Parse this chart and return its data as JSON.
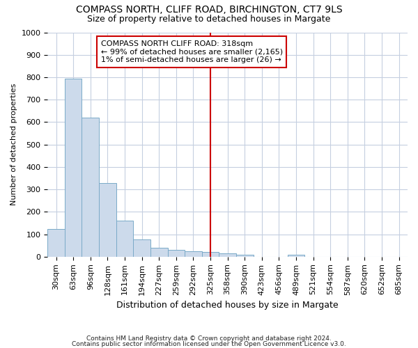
{
  "title1": "COMPASS NORTH, CLIFF ROAD, BIRCHINGTON, CT7 9LS",
  "title2": "Size of property relative to detached houses in Margate",
  "xlabel": "Distribution of detached houses by size in Margate",
  "ylabel": "Number of detached properties",
  "footnote1": "Contains HM Land Registry data © Crown copyright and database right 2024.",
  "footnote2": "Contains public sector information licensed under the Open Government Licence v3.0.",
  "annotation_line1": "COMPASS NORTH CLIFF ROAD: 318sqm",
  "annotation_line2": "← 99% of detached houses are smaller (2,165)",
  "annotation_line3": "1% of semi-detached houses are larger (26) →",
  "bar_color": "#ccdaeb",
  "bar_edge_color": "#7aaac8",
  "vline_color": "#cc0000",
  "annotation_box_edge_color": "#cc0000",
  "background_color": "#ffffff",
  "grid_color": "#c5cfe0",
  "categories": [
    "30sqm",
    "63sqm",
    "96sqm",
    "128sqm",
    "161sqm",
    "194sqm",
    "227sqm",
    "259sqm",
    "292sqm",
    "325sqm",
    "358sqm",
    "390sqm",
    "423sqm",
    "456sqm",
    "489sqm",
    "521sqm",
    "554sqm",
    "587sqm",
    "620sqm",
    "652sqm",
    "685sqm"
  ],
  "values": [
    125,
    795,
    620,
    328,
    162,
    78,
    40,
    30,
    25,
    20,
    14,
    8,
    0,
    0,
    9,
    0,
    0,
    0,
    0,
    0,
    0
  ],
  "ylim": [
    0,
    1000
  ],
  "yticks": [
    0,
    100,
    200,
    300,
    400,
    500,
    600,
    700,
    800,
    900,
    1000
  ],
  "vline_x": 9.0,
  "title1_fontsize": 10,
  "title2_fontsize": 9,
  "xlabel_fontsize": 9,
  "ylabel_fontsize": 8,
  "tick_fontsize": 8,
  "annotation_fontsize": 8
}
